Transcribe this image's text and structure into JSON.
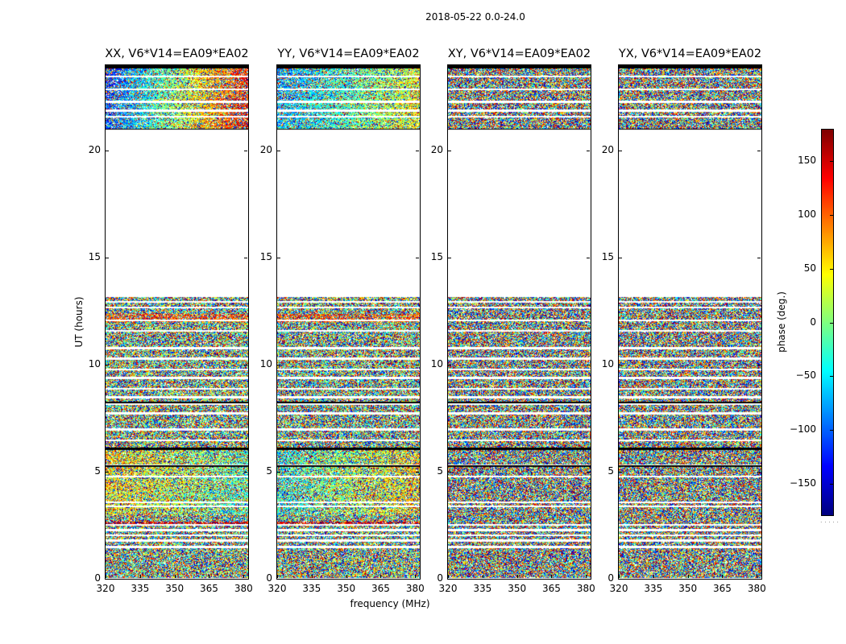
{
  "figure": {
    "suptitle": "2018-05-22 0.0-24.0",
    "xlabel": "frequency (MHz)",
    "ylabel": "UT (hours)",
    "colorbar_label": "phase (deg.)",
    "colorbar_footer": ". . . . ."
  },
  "chart_data": {
    "type": "heatmap",
    "panels": [
      {
        "title": "XX, V6*V14=EA09*EA02",
        "pol": "XX"
      },
      {
        "title": "YY, V6*V14=EA09*EA02",
        "pol": "YY"
      },
      {
        "title": "XY, V6*V14=EA09*EA02",
        "pol": "XY"
      },
      {
        "title": "YX, V6*V14=EA09*EA02",
        "pol": "YX"
      }
    ],
    "xlim": [
      320,
      382
    ],
    "ylim": [
      0,
      24
    ],
    "xticks": [
      320,
      335,
      350,
      365,
      380
    ],
    "xtick_labels": [
      "320",
      "335",
      "350",
      "365",
      "380"
    ],
    "yticks": [
      0,
      5,
      10,
      15,
      20
    ],
    "ytick_labels": [
      "0",
      "5",
      "10",
      "15",
      "20"
    ],
    "colorbar": {
      "colormap": "jet",
      "vmin": -180,
      "vmax": 180,
      "ticks": [
        -150,
        -100,
        -50,
        0,
        50,
        100,
        150
      ],
      "tick_labels": [
        "−150",
        "−100",
        "−50",
        "0",
        "50",
        "100",
        "150"
      ]
    },
    "data_gaps_hours": [
      [
        13.2,
        21.0
      ]
    ],
    "flagged_rows_hours": [
      0.02,
      1.5,
      1.8,
      2.05,
      2.3,
      2.55,
      3.4,
      3.6,
      4.8,
      5.3,
      6.1,
      6.5,
      7.0,
      7.75,
      8.2,
      8.5,
      8.9,
      9.4,
      9.8,
      10.3,
      10.8,
      11.6,
      12.1,
      12.7,
      12.95,
      21.6,
      21.9,
      22.3,
      22.9,
      23.5
    ]
  }
}
